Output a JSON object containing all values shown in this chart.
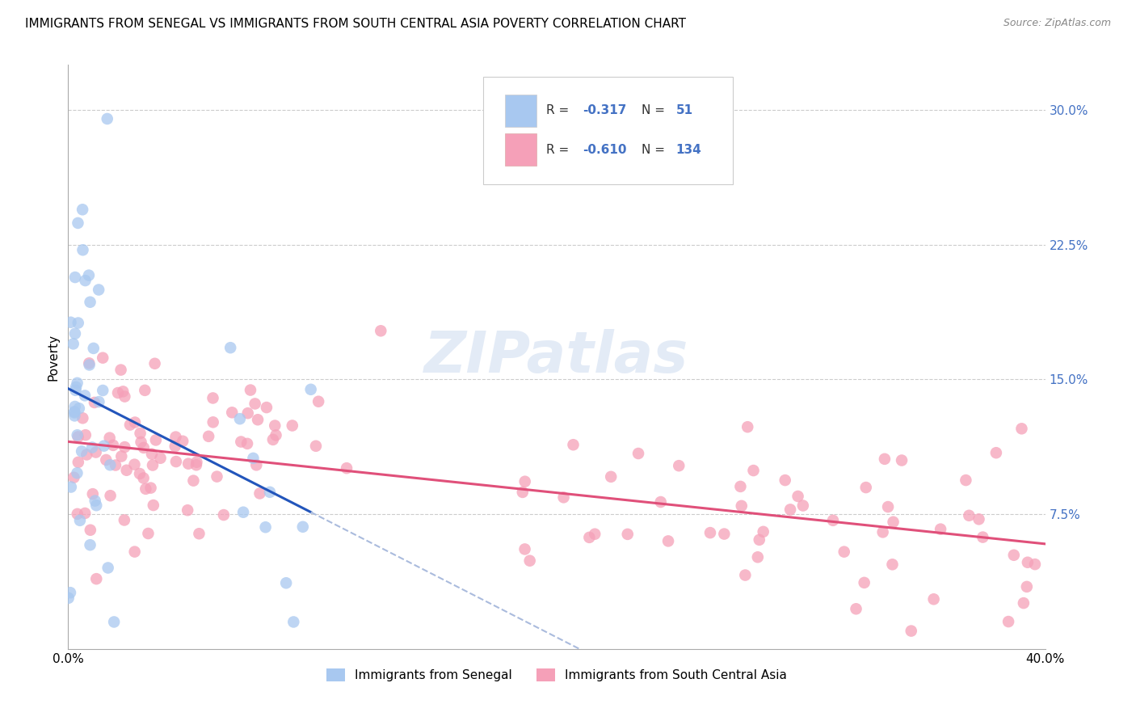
{
  "title": "IMMIGRANTS FROM SENEGAL VS IMMIGRANTS FROM SOUTH CENTRAL ASIA POVERTY CORRELATION CHART",
  "source": "Source: ZipAtlas.com",
  "ylabel": "Poverty",
  "xlim": [
    0.0,
    0.4
  ],
  "ylim": [
    0.0,
    0.325
  ],
  "R_senegal": -0.317,
  "N_senegal": 51,
  "R_southasia": -0.61,
  "N_southasia": 134,
  "color_senegal": "#a8c8f0",
  "color_southasia": "#f5a0b8",
  "trendline_senegal": "#2255bb",
  "trendline_senegal_dash": "#aabbdd",
  "trendline_southasia": "#e0507a",
  "watermark": "ZIPatlas",
  "background_color": "#ffffff",
  "grid_color": "#cccccc",
  "title_fontsize": 11,
  "legend_value_color": "#4472c4",
  "ytick_vals": [
    0.075,
    0.15,
    0.225,
    0.3
  ],
  "ytick_labels": [
    "7.5%",
    "15.0%",
    "22.5%",
    "30.0%"
  ]
}
